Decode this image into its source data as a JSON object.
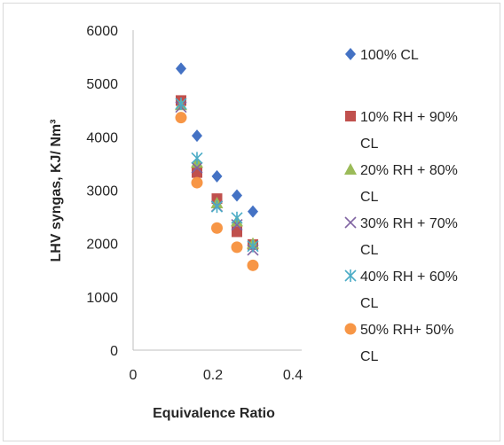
{
  "chart_data": {
    "type": "scatter",
    "title": "",
    "xlabel": "Equivalence Ratio",
    "ylabel": "LHV syngas, KJ/ Nm³",
    "xlim": [
      0,
      0.4
    ],
    "ylim": [
      0,
      6000
    ],
    "xticks": [
      "0",
      "0.2",
      "0.4"
    ],
    "yticks": [
      "0",
      "1000",
      "2000",
      "3000",
      "4000",
      "5000",
      "6000"
    ],
    "grid": false,
    "legend_position": "right",
    "series": [
      {
        "name": "100% CL",
        "legend_lines": [
          "100% CL"
        ],
        "marker": "diamond",
        "color": "#4472C4",
        "x": [
          0.12,
          0.16,
          0.21,
          0.26,
          0.3
        ],
        "y": [
          5280,
          4020,
          3260,
          2900,
          2600
        ]
      },
      {
        "name": "10% RH + 90% CL",
        "legend_lines": [
          "10% RH + 90%",
          "CL"
        ],
        "marker": "square",
        "color": "#C0504D",
        "x": [
          0.12,
          0.16,
          0.21,
          0.26,
          0.3
        ],
        "y": [
          4680,
          3330,
          2840,
          2220,
          1980
        ]
      },
      {
        "name": "20% RH + 80% CL",
        "legend_lines": [
          "20% RH + 80%",
          "CL"
        ],
        "marker": "triangle",
        "color": "#9BBB59",
        "x": [
          0.12,
          0.16,
          0.21,
          0.26,
          0.3
        ],
        "y": [
          4600,
          3520,
          2760,
          2420,
          2000
        ]
      },
      {
        "name": "30% RH + 70% CL",
        "legend_lines": [
          "30% RH + 70%",
          "CL"
        ],
        "marker": "x",
        "color": "#8064A2",
        "x": [
          0.12,
          0.16,
          0.21,
          0.26,
          0.3
        ],
        "y": [
          4560,
          3420,
          2700,
          2350,
          1880
        ]
      },
      {
        "name": "40% RH + 60% CL",
        "legend_lines": [
          "40% RH + 60%",
          "CL"
        ],
        "marker": "star",
        "color": "#4BACC6",
        "x": [
          0.12,
          0.16,
          0.21,
          0.26,
          0.3
        ],
        "y": [
          4620,
          3600,
          2690,
          2480,
          1950
        ]
      },
      {
        "name": "50% RH+ 50% CL",
        "legend_lines": [
          "50% RH+ 50%",
          "CL"
        ],
        "marker": "circle",
        "color": "#F79646",
        "x": [
          0.12,
          0.16,
          0.21,
          0.26,
          0.3
        ],
        "y": [
          4360,
          3140,
          2290,
          1930,
          1590
        ]
      }
    ]
  }
}
